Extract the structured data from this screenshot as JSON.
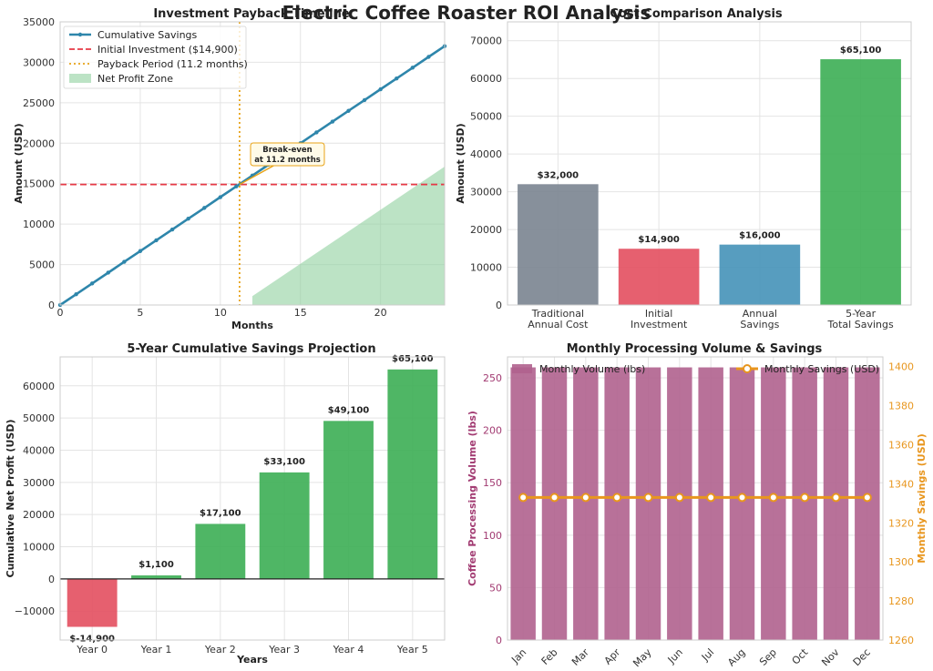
{
  "page": {
    "suptitle": "Electric Coffee Roaster ROI Analysis"
  },
  "colors": {
    "cumulative_line": "#2e86ab",
    "initial_line": "#e63946",
    "payback_line": "#e8a317",
    "profit_zone": "#8fd19e",
    "traditional": "#7a8490",
    "initial": "#e34f5f",
    "annual": "#4592b8",
    "total": "#3cae54",
    "negative": "#e34f5f",
    "positive": "#3cae54",
    "volume_bar": "#b0628e",
    "savings_line": "#e8961e",
    "volume_axis": "#a23b72",
    "savings_axis": "#e8961e"
  },
  "chart_data": [
    {
      "type": "line",
      "title": "Investment Payback Timeline",
      "xlabel": "Months",
      "ylabel": "Amount (USD)",
      "xlim": [
        0,
        24
      ],
      "ylim": [
        0,
        35000
      ],
      "xticks": [
        "0",
        "5",
        "10",
        "15",
        "20"
      ],
      "yticks": [
        "0",
        "5000",
        "10000",
        "15000",
        "20000",
        "25000",
        "30000",
        "35000"
      ],
      "grid": true,
      "legend_position": "upper-left",
      "series": [
        {
          "name": "Cumulative Savings",
          "kind": "line-markers",
          "x": [
            0,
            1,
            2,
            3,
            4,
            5,
            6,
            7,
            8,
            9,
            10,
            11,
            12,
            13,
            14,
            15,
            16,
            17,
            18,
            19,
            20,
            21,
            22,
            23,
            24
          ],
          "y": [
            0,
            1333,
            2667,
            4000,
            5333,
            6667,
            8000,
            9333,
            10667,
            12000,
            13333,
            14667,
            16000,
            17333,
            18667,
            20000,
            21333,
            22667,
            24000,
            25333,
            26667,
            28000,
            29333,
            30667,
            32000
          ]
        },
        {
          "name": "Initial Investment ($14,900)",
          "kind": "hline",
          "y": 14900
        },
        {
          "name": "Payback Period (11.2 months)",
          "kind": "vline",
          "x": 11.2
        },
        {
          "name": "Net Profit Zone",
          "kind": "fill",
          "x": [
            12,
            24
          ],
          "y_low": [
            0,
            0
          ],
          "y_high": [
            1100,
            17100
          ]
        }
      ],
      "annotation": {
        "line1": "Break-even",
        "line2": "at 11.2 months",
        "x": 11.2,
        "y": 14900
      }
    },
    {
      "type": "bar",
      "title": "Cost Comparison Analysis",
      "xlabel": "",
      "ylabel": "Amount (USD)",
      "ylim": [
        0,
        75000
      ],
      "yticks": [
        "0",
        "10000",
        "20000",
        "30000",
        "40000",
        "50000",
        "60000",
        "70000"
      ],
      "categories": [
        [
          "Traditional",
          "Annual Cost"
        ],
        [
          "Initial",
          "Investment"
        ],
        [
          "Annual",
          "Savings"
        ],
        [
          "5-Year",
          "Total Savings"
        ]
      ],
      "values": [
        32000,
        14900,
        16000,
        65100
      ],
      "value_labels": [
        "$32,000",
        "$14,900",
        "$16,000",
        "$65,100"
      ],
      "grid": true
    },
    {
      "type": "bar",
      "title": "5-Year Cumulative Savings Projection",
      "xlabel": "Years",
      "ylabel": "Cumulative Net Profit (USD)",
      "ylim": [
        -19000,
        69000
      ],
      "yticks": [
        "−10000",
        "0",
        "10000",
        "20000",
        "30000",
        "40000",
        "50000",
        "60000"
      ],
      "categories": [
        "Year 0",
        "Year 1",
        "Year 2",
        "Year 3",
        "Year 4",
        "Year 5"
      ],
      "values": [
        -14900,
        1100,
        17100,
        33100,
        49100,
        65100
      ],
      "value_labels": [
        "$-14,900",
        "$1,100",
        "$17,100",
        "$33,100",
        "$49,100",
        "$65,100"
      ],
      "grid": true
    },
    {
      "type": "bar",
      "title": "Monthly Processing Volume & Savings",
      "xlabel": "",
      "ylabel": "Coffee Processing Volume (lbs)",
      "y2label": "Monthly Savings (USD)",
      "ylim": [
        0,
        270
      ],
      "y2lim": [
        1260,
        1405
      ],
      "yticks": [
        "0",
        "50",
        "100",
        "150",
        "200",
        "250"
      ],
      "y2ticks": [
        "1260",
        "1280",
        "1300",
        "1320",
        "1340",
        "1360",
        "1380",
        "1400"
      ],
      "categories": [
        "Jan",
        "Feb",
        "Mar",
        "Apr",
        "May",
        "Jun",
        "Jul",
        "Aug",
        "Sep",
        "Oct",
        "Nov",
        "Dec"
      ],
      "series": [
        {
          "name": "Monthly Volume (lbs)",
          "axis": "left",
          "kind": "bar",
          "values": [
            260,
            260,
            260,
            260,
            260,
            260,
            260,
            260,
            260,
            260,
            260,
            260
          ]
        },
        {
          "name": "Monthly Savings (USD)",
          "axis": "right",
          "kind": "line-markers",
          "values": [
            1333,
            1333,
            1333,
            1333,
            1333,
            1333,
            1333,
            1333,
            1333,
            1333,
            1333,
            1333
          ]
        }
      ],
      "legend_position": "top",
      "grid": true
    }
  ]
}
